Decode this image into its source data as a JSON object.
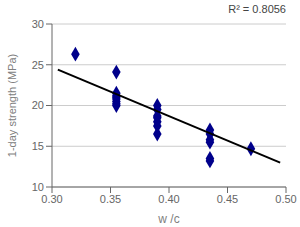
{
  "chart_data": {
    "type": "scatter",
    "annotation": "R² = 0.8056",
    "xlabel": "w /c",
    "ylabel": "1-day strength (MPa)",
    "xlim": [
      0.3,
      0.5
    ],
    "ylim": [
      10,
      30
    ],
    "xticks": [
      {
        "value": 0.3,
        "label": "0.30"
      },
      {
        "value": 0.35,
        "label": "0.35"
      },
      {
        "value": 0.4,
        "label": "0.40"
      },
      {
        "value": 0.45,
        "label": "0.45"
      },
      {
        "value": 0.5,
        "label": "0.50"
      }
    ],
    "yticks": [
      10,
      15,
      20,
      25,
      30
    ],
    "grid": "y",
    "series": [
      {
        "type": "scatter",
        "marker": "diamond",
        "color": "#00008B",
        "x": [
          0.32,
          0.355,
          0.355,
          0.355,
          0.355,
          0.355,
          0.355,
          0.355,
          0.355,
          0.39,
          0.39,
          0.39,
          0.39,
          0.39,
          0.39,
          0.39,
          0.435,
          0.435,
          0.435,
          0.435,
          0.435,
          0.435,
          0.47
        ],
        "values": [
          26.3,
          24.1,
          21.5,
          21.2,
          21.0,
          20.8,
          20.5,
          20.2,
          20.0,
          20.0,
          19.5,
          18.7,
          18.5,
          18.0,
          17.5,
          16.5,
          17.0,
          16.5,
          15.8,
          15.5,
          13.5,
          13.2,
          14.7
        ]
      },
      {
        "type": "line",
        "line_style": "solid",
        "color": "#000000",
        "x": [
          0.305,
          0.495
        ],
        "values": [
          24.4,
          13.0
        ]
      }
    ]
  }
}
